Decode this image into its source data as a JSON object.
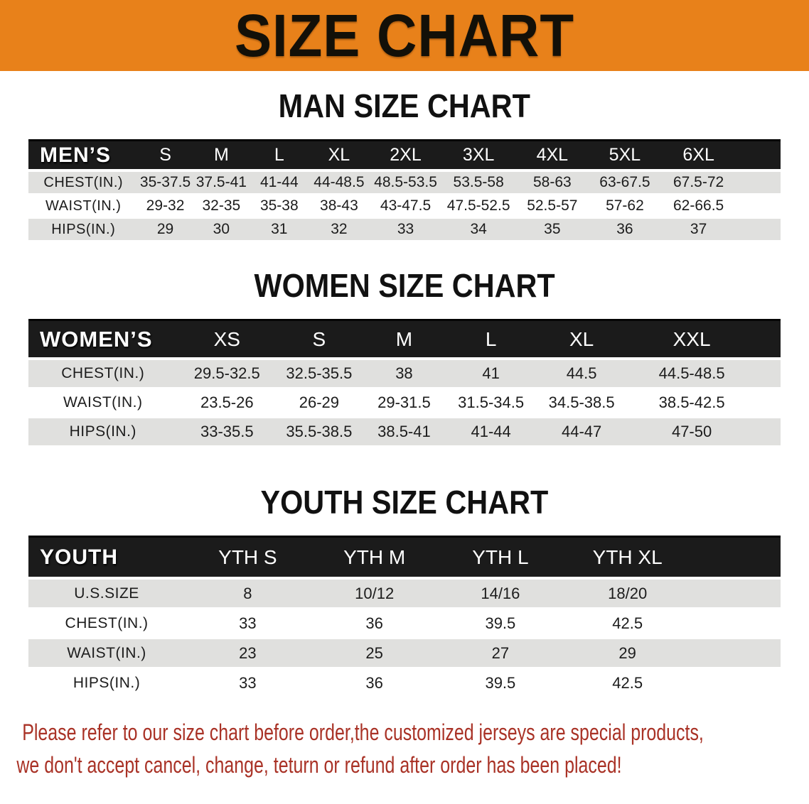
{
  "banner": {
    "title": "SIZE CHART"
  },
  "sections": [
    {
      "heading": "MAN SIZE CHART",
      "corner_label": "MEN’S",
      "columns": [
        "S",
        "M",
        "L",
        "XL",
        "2XL",
        "3XL",
        "4XL",
        "5XL",
        "6XL"
      ],
      "rows": [
        {
          "label": "CHEST(IN.)",
          "values": [
            "35-37.5",
            "37.5-41",
            "41-44",
            "44-48.5",
            "48.5-53.5",
            "53.5-58",
            "58-63",
            "63-67.5",
            "67.5-72"
          ]
        },
        {
          "label": "WAIST(IN.)",
          "values": [
            "29-32",
            "32-35",
            "35-38",
            "38-43",
            "43-47.5",
            "47.5-52.5",
            "52.5-57",
            "57-62",
            "62-66.5"
          ]
        },
        {
          "label": "HIPS(IN.)",
          "values": [
            "29",
            "30",
            "31",
            "32",
            "33",
            "34",
            "35",
            "36",
            "37"
          ]
        }
      ]
    },
    {
      "heading": "WOMEN SIZE CHART",
      "corner_label": "WOMEN’S",
      "columns": [
        "XS",
        "S",
        "M",
        "L",
        "XL",
        "XXL"
      ],
      "rows": [
        {
          "label": "CHEST(IN.)",
          "values": [
            "29.5-32.5",
            "32.5-35.5",
            "38",
            "41",
            "44.5",
            "44.5-48.5"
          ]
        },
        {
          "label": "WAIST(IN.)",
          "values": [
            "23.5-26",
            "26-29",
            "29-31.5",
            "31.5-34.5",
            "34.5-38.5",
            "38.5-42.5"
          ]
        },
        {
          "label": "HIPS(IN.)",
          "values": [
            "33-35.5",
            "35.5-38.5",
            "38.5-41",
            "41-44",
            "44-47",
            "47-50"
          ]
        }
      ]
    },
    {
      "heading": "YOUTH SIZE CHART",
      "corner_label": "YOUTH",
      "columns": [
        "YTH S",
        "YTH M",
        "YTH L",
        "YTH XL"
      ],
      "rows": [
        {
          "label": "U.S.SIZE",
          "values": [
            "8",
            "10/12",
            "14/16",
            "18/20"
          ]
        },
        {
          "label": "CHEST(IN.)",
          "values": [
            "33",
            "36",
            "39.5",
            "42.5"
          ]
        },
        {
          "label": "WAIST(IN.)",
          "values": [
            "23",
            "25",
            "27",
            "29"
          ]
        },
        {
          "label": "HIPS(IN.)",
          "values": [
            "33",
            "36",
            "39.5",
            "42.5"
          ]
        }
      ]
    }
  ],
  "footer": {
    "line1": "Please refer to our size chart before order,the customized jerseys are special products,",
    "line2": "we don't accept cancel, change, teturn or refund after order has been placed!"
  },
  "colors": {
    "banner_bg": "#E8811A",
    "header_bar_bg": "#1B1B1B",
    "header_bar_text": "#FFFFFF",
    "row_stripe": "#E0E0DE",
    "table_text": "#1C1C1C",
    "notice_text": "#A93226"
  }
}
